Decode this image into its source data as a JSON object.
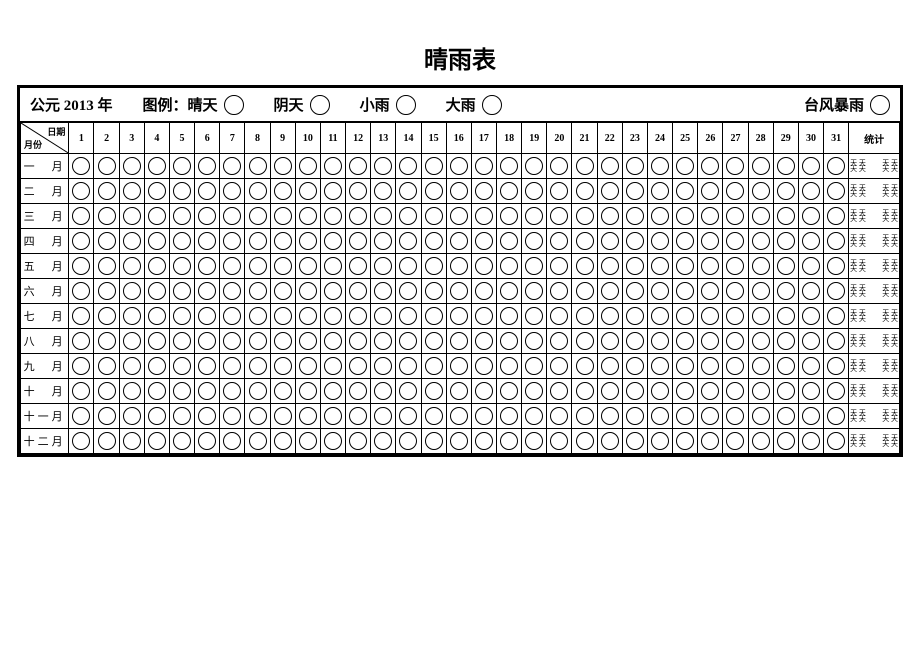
{
  "title": "晴雨表",
  "year_label": "公元 2013 年",
  "legend_prefix": "图例：",
  "legend_items": [
    {
      "label": "晴天"
    },
    {
      "label": "阴天"
    },
    {
      "label": "小雨"
    },
    {
      "label": "大雨"
    },
    {
      "label": "台风暴雨"
    }
  ],
  "header_diag_top": "日期",
  "header_diag_bottom": "月份",
  "days": [
    "1",
    "2",
    "3",
    "4",
    "5",
    "6",
    "7",
    "8",
    "9",
    "10",
    "11",
    "12",
    "13",
    "14",
    "15",
    "16",
    "17",
    "18",
    "19",
    "20",
    "21",
    "22",
    "23",
    "24",
    "25",
    "26",
    "27",
    "28",
    "29",
    "30",
    "31"
  ],
  "stat_header": "统计",
  "months": [
    "一　月",
    "二　月",
    "三　月",
    "四　月",
    "五　月",
    "六　月",
    "七　月",
    "八　月",
    "九　月",
    "十　月",
    "十一月",
    "十二月"
  ],
  "stat_text_a": "天 天",
  "stat_text_b": "天 天",
  "colors": {
    "bg": "#ffffff",
    "line": "#000000"
  }
}
